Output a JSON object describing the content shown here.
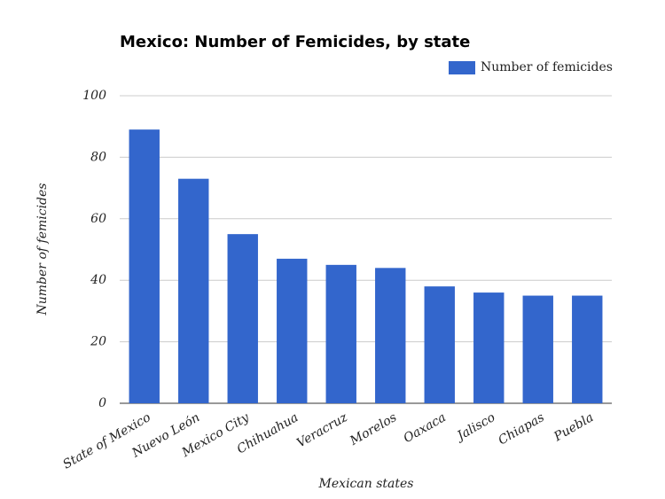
{
  "chart_data": {
    "type": "bar",
    "title": "Mexico: Number of Femicides, by state",
    "x_label": "Mexican states",
    "y_label": "Number of femicides",
    "categories": [
      "State of Mexico",
      "Nuevo León",
      "Mexico City",
      "Chihuahua",
      "Veracruz",
      "Morelos",
      "Oaxaca",
      "Jalisco",
      "Chiapas",
      "Puebla"
    ],
    "series": [
      {
        "name": "Number of femicides",
        "color": "#3366cc",
        "values": [
          89,
          73,
          55,
          47,
          45,
          44,
          38,
          36,
          35,
          35
        ]
      }
    ],
    "ylim": [
      0,
      100
    ],
    "yticks": [
      0,
      20,
      40,
      60,
      80,
      100
    ],
    "grid": true,
    "legend": "top-right"
  }
}
